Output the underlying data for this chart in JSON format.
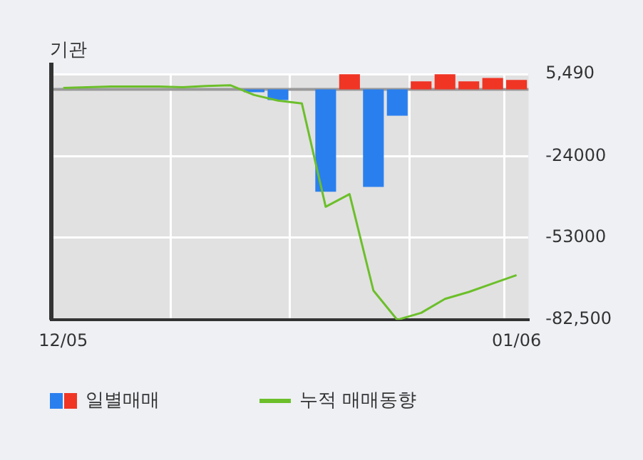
{
  "chart_data": {
    "type": "bar",
    "title": "기관",
    "categories": [
      "12/05",
      null,
      null,
      null,
      null,
      null,
      null,
      null,
      null,
      null,
      null,
      null,
      null,
      null,
      null,
      null,
      null,
      null,
      null,
      "01/06"
    ],
    "series": [
      {
        "name": "일별매매",
        "colors": [
          "#f03525",
          "#f03525",
          "#f03525",
          "#f03525",
          "#f03525",
          "#f03525",
          "#f03525",
          "#f03525",
          "#2a7fef",
          "#2a7fef",
          "#f03525",
          "#2a7fef",
          "#f03525",
          "#2a7fef",
          "#2a7fef",
          "#f03525",
          "#f03525",
          "#f03525",
          "#f03525",
          "#f03525"
        ],
        "values": [
          0,
          0,
          0,
          0,
          0,
          0,
          0,
          0,
          -1000,
          -3800,
          0,
          -36600,
          5400,
          -34900,
          -9400,
          2900,
          5400,
          2900,
          4100,
          3400
        ]
      },
      {
        "name": "누적 매매동향",
        "type": "line",
        "color": "#6cbf2a",
        "values": [
          500,
          800,
          1000,
          1000,
          1000,
          800,
          1200,
          1500,
          -2000,
          -4000,
          -5000,
          -42000,
          -37500,
          -72000,
          -82500,
          -80000,
          -75000,
          -72500,
          -69500,
          -66500
        ]
      }
    ],
    "ylim": [
      -82500,
      5490
    ],
    "yticks": [
      {
        "value": 5490,
        "label": "5,490"
      },
      -24000,
      -53000,
      {
        "value": -82500,
        "label": "-82,500"
      }
    ],
    "ref_lines": [
      {
        "axis": "y",
        "value": 0,
        "color": "#999999"
      }
    ],
    "grid": true,
    "legend": "bottom",
    "marker": "none",
    "line_style": "solid"
  }
}
